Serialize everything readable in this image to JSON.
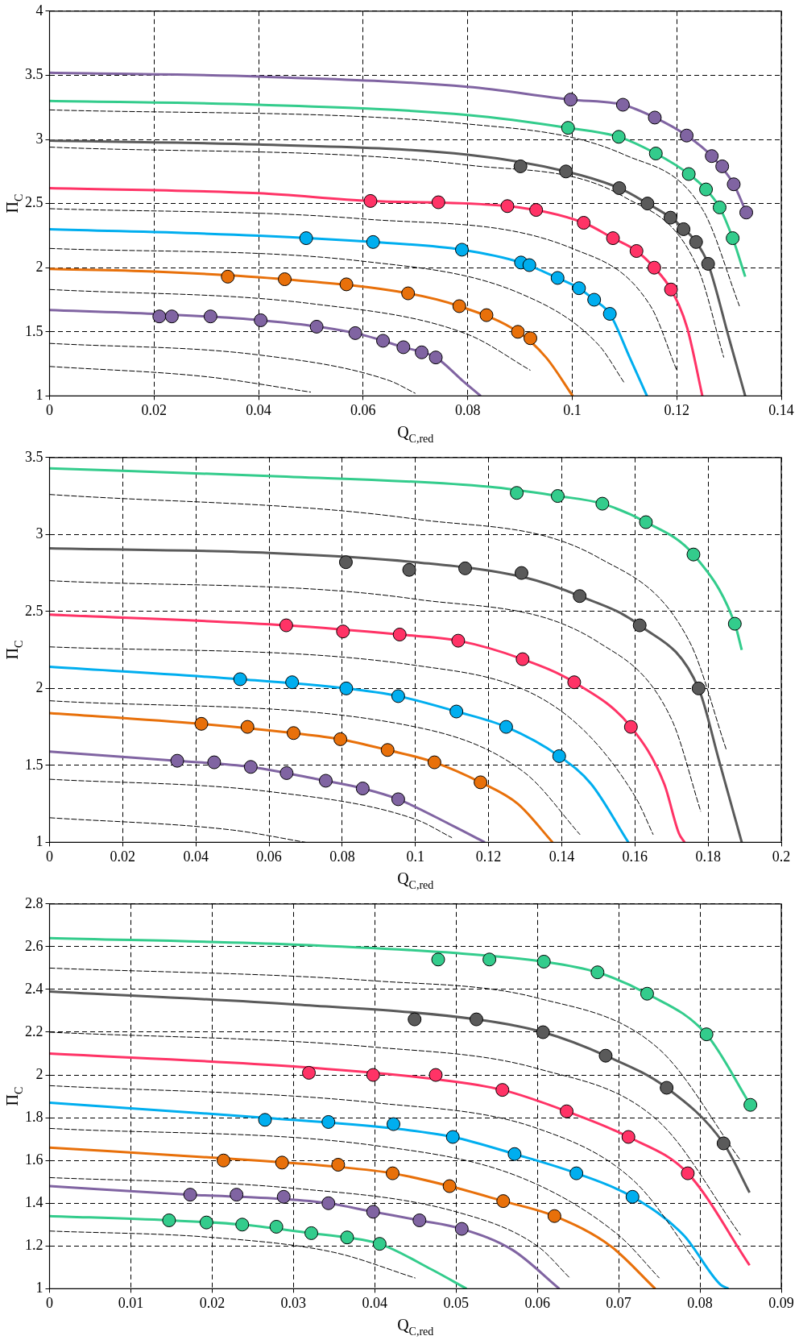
{
  "chart_data": [
    {
      "type": "line",
      "xlabel": "Q$_{C,red}$",
      "ylabel": "Π$_{C}$",
      "grid": true,
      "legend": false,
      "xlim": [
        0,
        0.14
      ],
      "ylim": [
        1,
        4
      ],
      "xticks": [
        0,
        0.02,
        0.04,
        0.06,
        0.08,
        0.1,
        0.12,
        0.14
      ],
      "yticks": [
        1,
        1.5,
        2,
        2.5,
        3,
        3.5,
        4
      ],
      "series": [
        {
          "type": "line",
          "color": "#000000",
          "line_style": "dashed",
          "x": [
            0,
            0.08,
            0.11,
            0.125,
            0.132
          ],
          "values": [
            3.23,
            3.12,
            2.88,
            2.45,
            1.7
          ]
        },
        {
          "type": "line",
          "color": "#000000",
          "line_style": "dashed",
          "x": [
            0,
            0.08,
            0.11,
            0.124,
            0.129
          ],
          "values": [
            2.94,
            2.8,
            2.55,
            2.0,
            1.3
          ]
        },
        {
          "type": "line",
          "color": "#000000",
          "line_style": "dashed",
          "x": [
            0,
            0.06,
            0.1,
            0.115,
            0.12
          ],
          "values": [
            2.46,
            2.38,
            2.15,
            1.7,
            1.2
          ]
        },
        {
          "type": "line",
          "color": "#000000",
          "line_style": "dashed",
          "x": [
            0,
            0.06,
            0.09,
            0.105,
            0.11
          ],
          "values": [
            2.15,
            2.05,
            1.8,
            1.4,
            1.1
          ]
        },
        {
          "type": "line",
          "color": "#000000",
          "line_style": "dashed",
          "x": [
            0,
            0.05,
            0.08,
            0.092
          ],
          "values": [
            1.83,
            1.72,
            1.48,
            1.2
          ]
        },
        {
          "type": "line",
          "color": "#000000",
          "line_style": "dashed",
          "x": [
            0,
            0.04,
            0.065,
            0.07
          ],
          "values": [
            1.41,
            1.32,
            1.12,
            1.02
          ]
        },
        {
          "type": "line",
          "color": "#000000",
          "line_style": "dashed",
          "x": [
            0,
            0.03,
            0.05
          ],
          "values": [
            1.23,
            1.15,
            1.03
          ]
        },
        {
          "type": "line",
          "color": "#8064a2",
          "x": [
            0,
            0.04,
            0.08,
            0.0997,
            0.1097,
            0.1158,
            0.1219,
            0.1267,
            0.1309,
            0.1333
          ],
          "values": [
            3.52,
            3.49,
            3.41,
            3.31,
            3.27,
            3.17,
            3.03,
            2.87,
            2.65,
            2.43
          ]
        },
        {
          "type": "line",
          "color": "#33cc8c",
          "x": [
            0,
            0.04,
            0.08,
            0.0992,
            0.1089,
            0.116,
            0.1223,
            0.1256,
            0.1282,
            0.1307,
            0.1331
          ],
          "values": [
            3.3,
            3.27,
            3.19,
            3.09,
            3.02,
            2.89,
            2.73,
            2.61,
            2.47,
            2.23,
            1.93
          ]
        },
        {
          "type": "line",
          "color": "#5a5a5a",
          "x": [
            0,
            0.04,
            0.08,
            0.0988,
            0.109,
            0.1144,
            0.1188,
            0.1237,
            0.126,
            0.13,
            0.1331
          ],
          "values": [
            2.99,
            2.96,
            2.88,
            2.75,
            2.62,
            2.5,
            2.39,
            2.2,
            2.03,
            1.45,
            1.0
          ]
        },
        {
          "type": "line",
          "color": "#ff3366",
          "x": [
            0,
            0.04,
            0.0614,
            0.0876,
            0.1022,
            0.1078,
            0.1123,
            0.1157,
            0.1189,
            0.122,
            0.1249
          ],
          "values": [
            2.62,
            2.58,
            2.52,
            2.48,
            2.35,
            2.23,
            2.13,
            2.0,
            1.83,
            1.53,
            1.0
          ]
        },
        {
          "type": "line",
          "color": "#00aeef",
          "x": [
            0,
            0.04,
            0.0619,
            0.0789,
            0.0902,
            0.0972,
            0.1013,
            0.1042,
            0.1072,
            0.111,
            0.1143
          ],
          "values": [
            2.3,
            2.25,
            2.2,
            2.14,
            2.04,
            1.92,
            1.84,
            1.75,
            1.64,
            1.3,
            1.0
          ]
        },
        {
          "type": "line",
          "color": "#e8700a",
          "x": [
            0,
            0.02,
            0.045,
            0.0686,
            0.0784,
            0.0896,
            0.095,
            0.1001
          ],
          "values": [
            1.99,
            1.97,
            1.91,
            1.8,
            1.7,
            1.5,
            1.3,
            1.0
          ]
        },
        {
          "type": "line",
          "color": "#8064a2",
          "x": [
            0,
            0.02,
            0.0404,
            0.0585,
            0.0677,
            0.0739,
            0.079,
            0.0825
          ],
          "values": [
            1.67,
            1.64,
            1.59,
            1.49,
            1.38,
            1.3,
            1.12,
            1.0
          ]
        },
        {
          "type": "scatter",
          "marker": "circle",
          "color": "#8064a2",
          "x": [
            0.0997,
            0.1097,
            0.1158,
            0.1219,
            0.1267,
            0.1287,
            0.1309,
            0.1333
          ],
          "values": [
            3.31,
            3.27,
            3.17,
            3.03,
            2.87,
            2.79,
            2.65,
            2.43
          ]
        },
        {
          "type": "scatter",
          "marker": "circle",
          "color": "#33cc8c",
          "x": [
            0.0992,
            0.1089,
            0.116,
            0.1223,
            0.1256,
            0.1282,
            0.1307
          ],
          "values": [
            3.09,
            3.02,
            2.89,
            2.73,
            2.61,
            2.47,
            2.23
          ]
        },
        {
          "type": "scatter",
          "marker": "circle",
          "color": "#5a5a5a",
          "x": [
            0.0901,
            0.0988,
            0.109,
            0.1144,
            0.1188,
            0.1213,
            0.1237,
            0.126
          ],
          "values": [
            2.79,
            2.75,
            2.62,
            2.5,
            2.39,
            2.3,
            2.2,
            2.03
          ]
        },
        {
          "type": "scatter",
          "marker": "circle",
          "color": "#ff3366",
          "x": [
            0.0614,
            0.0744,
            0.0876,
            0.0931,
            0.1022,
            0.1078,
            0.1123,
            0.1157,
            0.1189
          ],
          "values": [
            2.52,
            2.51,
            2.48,
            2.45,
            2.35,
            2.23,
            2.13,
            2.0,
            1.83
          ]
        },
        {
          "type": "scatter",
          "marker": "circle",
          "color": "#00aeef",
          "x": [
            0.0491,
            0.0619,
            0.0789,
            0.0902,
            0.0918,
            0.0972,
            0.1013,
            0.1042,
            0.1072
          ],
          "values": [
            2.23,
            2.2,
            2.14,
            2.04,
            2.02,
            1.92,
            1.84,
            1.75,
            1.64
          ]
        },
        {
          "type": "scatter",
          "marker": "circle",
          "color": "#e8700a",
          "x": [
            0.0341,
            0.045,
            0.0568,
            0.0686,
            0.0784,
            0.0836,
            0.0896,
            0.092
          ],
          "values": [
            1.93,
            1.91,
            1.87,
            1.8,
            1.7,
            1.63,
            1.5,
            1.45
          ]
        },
        {
          "type": "scatter",
          "marker": "circle",
          "color": "#8064a2",
          "x": [
            0.021,
            0.0234,
            0.0308,
            0.0404,
            0.0511,
            0.0585,
            0.0638,
            0.0677,
            0.0712,
            0.0739
          ],
          "values": [
            1.62,
            1.62,
            1.62,
            1.59,
            1.54,
            1.49,
            1.43,
            1.38,
            1.34,
            1.3
          ]
        }
      ]
    },
    {
      "type": "line",
      "xlabel": "Q$_{C,red}$",
      "ylabel": "Π$_{C}$",
      "grid": true,
      "legend": false,
      "xlim": [
        0,
        0.2
      ],
      "ylim": [
        1,
        3.5
      ],
      "xticks": [
        0,
        0.02,
        0.04,
        0.06,
        0.08,
        0.1,
        0.12,
        0.14,
        0.16,
        0.18,
        0.2
      ],
      "yticks": [
        1,
        1.5,
        2,
        2.5,
        3,
        3.5
      ],
      "series": [
        {
          "type": "line",
          "color": "#000000",
          "line_style": "dashed",
          "x": [
            0,
            0.1,
            0.15,
            0.175,
            0.185
          ],
          "values": [
            3.26,
            3.1,
            2.85,
            2.3,
            1.6
          ]
        },
        {
          "type": "line",
          "color": "#000000",
          "line_style": "dashed",
          "x": [
            0,
            0.1,
            0.15,
            0.17,
            0.178
          ],
          "values": [
            2.7,
            2.58,
            2.3,
            1.8,
            1.2
          ]
        },
        {
          "type": "line",
          "color": "#000000",
          "line_style": "dashed",
          "x": [
            0,
            0.1,
            0.14,
            0.16,
            0.165
          ],
          "values": [
            2.27,
            2.15,
            1.85,
            1.3,
            1.05
          ]
        },
        {
          "type": "line",
          "color": "#000000",
          "line_style": "dashed",
          "x": [
            0,
            0.1,
            0.13,
            0.145
          ],
          "values": [
            1.92,
            1.75,
            1.45,
            1.05
          ]
        },
        {
          "type": "line",
          "color": "#000000",
          "line_style": "dashed",
          "x": [
            0,
            0.06,
            0.1,
            0.11
          ],
          "values": [
            1.41,
            1.33,
            1.15,
            1.03
          ]
        },
        {
          "type": "line",
          "color": "#000000",
          "line_style": "dashed",
          "x": [
            0,
            0.05,
            0.07
          ],
          "values": [
            1.16,
            1.08,
            1.0
          ]
        },
        {
          "type": "line",
          "color": "#33cc8c",
          "x": [
            0,
            0.06,
            0.12,
            0.1389,
            0.1511,
            0.163,
            0.176,
            0.1873,
            0.1892
          ],
          "values": [
            3.43,
            3.38,
            3.31,
            3.25,
            3.2,
            3.08,
            2.87,
            2.42,
            2.25
          ]
        },
        {
          "type": "line",
          "color": "#5a5a5a",
          "x": [
            0,
            0.06,
            0.1,
            0.13,
            0.1449,
            0.1613,
            0.1774,
            0.183,
            0.1892
          ],
          "values": [
            2.91,
            2.88,
            2.82,
            2.72,
            2.6,
            2.41,
            2.0,
            1.53,
            1.0
          ]
        },
        {
          "type": "line",
          "color": "#ff3366",
          "x": [
            0,
            0.0647,
            0.0957,
            0.1117,
            0.1293,
            0.1434,
            0.1589,
            0.168,
            0.172,
            0.1736
          ],
          "values": [
            2.48,
            2.41,
            2.35,
            2.31,
            2.19,
            2.04,
            1.75,
            1.38,
            1.06,
            1.0
          ]
        },
        {
          "type": "line",
          "color": "#00aeef",
          "x": [
            0,
            0.0521,
            0.0811,
            0.0953,
            0.1112,
            0.1248,
            0.1393,
            0.148,
            0.1582
          ],
          "values": [
            2.14,
            2.06,
            2.0,
            1.95,
            1.85,
            1.75,
            1.56,
            1.38,
            1.0
          ]
        },
        {
          "type": "line",
          "color": "#e8700a",
          "x": [
            0,
            0.0415,
            0.0667,
            0.0795,
            0.0924,
            0.1052,
            0.1178,
            0.128,
            0.1375
          ],
          "values": [
            1.84,
            1.77,
            1.71,
            1.67,
            1.6,
            1.52,
            1.39,
            1.25,
            1.0
          ]
        },
        {
          "type": "line",
          "color": "#8064a2",
          "x": [
            0,
            0.0349,
            0.055,
            0.0648,
            0.0755,
            0.0856,
            0.0953,
            0.11,
            0.119
          ],
          "values": [
            1.59,
            1.53,
            1.49,
            1.45,
            1.4,
            1.35,
            1.28,
            1.11,
            1.0
          ]
        },
        {
          "type": "scatter",
          "marker": "circle",
          "color": "#33cc8c",
          "x": [
            0.1277,
            0.1389,
            0.1511,
            0.163,
            0.176,
            0.1873
          ],
          "values": [
            3.27,
            3.25,
            3.2,
            3.08,
            2.87,
            2.42
          ]
        },
        {
          "type": "scatter",
          "marker": "circle",
          "color": "#5a5a5a",
          "x": [
            0.081,
            0.0983,
            0.1136,
            0.129,
            0.1449,
            0.1613,
            0.1774
          ],
          "values": [
            2.82,
            2.77,
            2.78,
            2.75,
            2.6,
            2.41,
            2.0
          ]
        },
        {
          "type": "scatter",
          "marker": "circle",
          "color": "#ff3366",
          "x": [
            0.0647,
            0.0802,
            0.0957,
            0.1117,
            0.1293,
            0.1434,
            0.1589
          ],
          "values": [
            2.41,
            2.37,
            2.35,
            2.31,
            2.19,
            2.04,
            1.75
          ]
        },
        {
          "type": "scatter",
          "marker": "circle",
          "color": "#00aeef",
          "x": [
            0.0521,
            0.0663,
            0.0811,
            0.0953,
            0.1112,
            0.1248,
            0.1393
          ],
          "values": [
            2.06,
            2.04,
            2.0,
            1.95,
            1.85,
            1.75,
            1.56
          ]
        },
        {
          "type": "scatter",
          "marker": "circle",
          "color": "#e8700a",
          "x": [
            0.0415,
            0.0541,
            0.0667,
            0.0795,
            0.0924,
            0.1052,
            0.1178
          ],
          "values": [
            1.77,
            1.75,
            1.71,
            1.67,
            1.6,
            1.52,
            1.39
          ]
        },
        {
          "type": "scatter",
          "marker": "circle",
          "color": "#8064a2",
          "x": [
            0.0349,
            0.045,
            0.055,
            0.0648,
            0.0755,
            0.0856,
            0.0953
          ],
          "values": [
            1.53,
            1.52,
            1.49,
            1.45,
            1.4,
            1.35,
            1.28
          ]
        }
      ]
    },
    {
      "type": "line",
      "xlabel": "Q$_{C,red}$",
      "ylabel": "Π$_{C}$",
      "grid": true,
      "legend": false,
      "xlim": [
        0,
        0.09
      ],
      "ylim": [
        1,
        2.8
      ],
      "xticks": [
        0,
        0.01,
        0.02,
        0.03,
        0.04,
        0.05,
        0.06,
        0.07,
        0.08,
        0.09
      ],
      "yticks": [
        1,
        1.2,
        1.4,
        1.6,
        1.8,
        2,
        2.2,
        2.4,
        2.6,
        2.8
      ],
      "series": [
        {
          "type": "line",
          "color": "#000000",
          "line_style": "dashed",
          "x": [
            0,
            0.04,
            0.06,
            0.075,
            0.085
          ],
          "values": [
            2.5,
            2.44,
            2.36,
            2.12,
            1.6
          ]
        },
        {
          "type": "line",
          "color": "#000000",
          "line_style": "dashed",
          "x": [
            0,
            0.04,
            0.06,
            0.075,
            0.085
          ],
          "values": [
            2.2,
            2.13,
            2.03,
            1.78,
            1.25
          ]
        },
        {
          "type": "line",
          "color": "#000000",
          "line_style": "dashed",
          "x": [
            0,
            0.04,
            0.06,
            0.072,
            0.08
          ],
          "values": [
            1.95,
            1.87,
            1.75,
            1.5,
            1.1
          ]
        },
        {
          "type": "line",
          "color": "#000000",
          "line_style": "dashed",
          "x": [
            0,
            0.04,
            0.058,
            0.07,
            0.075
          ],
          "values": [
            1.75,
            1.67,
            1.52,
            1.25,
            1.05
          ]
        },
        {
          "type": "line",
          "color": "#000000",
          "line_style": "dashed",
          "x": [
            0,
            0.03,
            0.05,
            0.06,
            0.064
          ],
          "values": [
            1.52,
            1.47,
            1.36,
            1.2,
            1.05
          ]
        },
        {
          "type": "line",
          "color": "#000000",
          "line_style": "dashed",
          "x": [
            0,
            0.02,
            0.035,
            0.045
          ],
          "values": [
            1.27,
            1.24,
            1.17,
            1.05
          ]
        },
        {
          "type": "line",
          "color": "#33cc8c",
          "x": [
            0,
            0.03,
            0.05,
            0.0608,
            0.0674,
            0.0735,
            0.0808,
            0.0862
          ],
          "values": [
            2.64,
            2.61,
            2.57,
            2.53,
            2.48,
            2.38,
            2.19,
            1.86
          ]
        },
        {
          "type": "line",
          "color": "#5a5a5a",
          "x": [
            0,
            0.03,
            0.0525,
            0.0607,
            0.0684,
            0.0759,
            0.0829,
            0.0861
          ],
          "values": [
            2.39,
            2.33,
            2.26,
            2.2,
            2.09,
            1.94,
            1.68,
            1.45
          ]
        },
        {
          "type": "line",
          "color": "#ff3366",
          "x": [
            0,
            0.03,
            0.0475,
            0.0557,
            0.0636,
            0.0712,
            0.0785,
            0.0861
          ],
          "values": [
            2.1,
            2.04,
            1.98,
            1.93,
            1.83,
            1.71,
            1.54,
            1.11
          ]
        },
        {
          "type": "line",
          "color": "#00aeef",
          "x": [
            0,
            0.0265,
            0.0423,
            0.0496,
            0.0572,
            0.0648,
            0.0717,
            0.078,
            0.0825,
            0.0835
          ],
          "values": [
            1.87,
            1.8,
            1.75,
            1.71,
            1.63,
            1.54,
            1.43,
            1.25,
            1.02,
            1.0
          ]
        },
        {
          "type": "line",
          "color": "#e8700a",
          "x": [
            0,
            0.0214,
            0.0355,
            0.0422,
            0.0492,
            0.0558,
            0.0621,
            0.069,
            0.0745
          ],
          "values": [
            1.66,
            1.61,
            1.57,
            1.54,
            1.48,
            1.41,
            1.34,
            1.2,
            1.0
          ]
        },
        {
          "type": "line",
          "color": "#8064a2",
          "x": [
            0,
            0.0173,
            0.0288,
            0.0343,
            0.0398,
            0.0455,
            0.0507,
            0.057,
            0.0627
          ],
          "values": [
            1.48,
            1.44,
            1.42,
            1.4,
            1.36,
            1.32,
            1.28,
            1.18,
            1.0
          ]
        },
        {
          "type": "line",
          "color": "#33cc8c",
          "x": [
            0,
            0.0147,
            0.0237,
            0.0322,
            0.0366,
            0.0406,
            0.047,
            0.0513
          ],
          "values": [
            1.34,
            1.32,
            1.3,
            1.26,
            1.24,
            1.21,
            1.09,
            1.0
          ]
        },
        {
          "type": "scatter",
          "marker": "circle",
          "color": "#33cc8c",
          "x": [
            0.0478,
            0.0541,
            0.0608,
            0.0674,
            0.0735,
            0.0808,
            0.0862
          ],
          "values": [
            2.54,
            2.54,
            2.53,
            2.48,
            2.38,
            2.19,
            1.86
          ]
        },
        {
          "type": "scatter",
          "marker": "circle",
          "color": "#5a5a5a",
          "x": [
            0.0449,
            0.0525,
            0.0607,
            0.0684,
            0.0759,
            0.0829
          ],
          "values": [
            2.26,
            2.26,
            2.2,
            2.09,
            1.94,
            1.68
          ]
        },
        {
          "type": "scatter",
          "marker": "circle",
          "color": "#ff3366",
          "x": [
            0.0319,
            0.0398,
            0.0475,
            0.0557,
            0.0636,
            0.0712,
            0.0785
          ],
          "values": [
            2.01,
            2.0,
            2.0,
            1.93,
            1.83,
            1.71,
            1.54
          ]
        },
        {
          "type": "scatter",
          "marker": "circle",
          "color": "#00aeef",
          "x": [
            0.0265,
            0.0343,
            0.0423,
            0.0496,
            0.0572,
            0.0648,
            0.0717
          ],
          "values": [
            1.79,
            1.78,
            1.77,
            1.71,
            1.63,
            1.54,
            1.43
          ]
        },
        {
          "type": "scatter",
          "marker": "circle",
          "color": "#e8700a",
          "x": [
            0.0214,
            0.0286,
            0.0355,
            0.0422,
            0.0492,
            0.0558,
            0.0621
          ],
          "values": [
            1.6,
            1.59,
            1.58,
            1.54,
            1.48,
            1.41,
            1.34
          ]
        },
        {
          "type": "scatter",
          "marker": "circle",
          "color": "#8064a2",
          "x": [
            0.0173,
            0.023,
            0.0288,
            0.0343,
            0.0398,
            0.0455,
            0.0507
          ],
          "values": [
            1.44,
            1.44,
            1.43,
            1.4,
            1.36,
            1.32,
            1.28
          ]
        },
        {
          "type": "scatter",
          "marker": "circle",
          "color": "#33cc8c",
          "x": [
            0.0147,
            0.0193,
            0.0237,
            0.0279,
            0.0322,
            0.0366,
            0.0406
          ],
          "values": [
            1.32,
            1.31,
            1.3,
            1.29,
            1.26,
            1.24,
            1.21
          ]
        }
      ]
    }
  ]
}
